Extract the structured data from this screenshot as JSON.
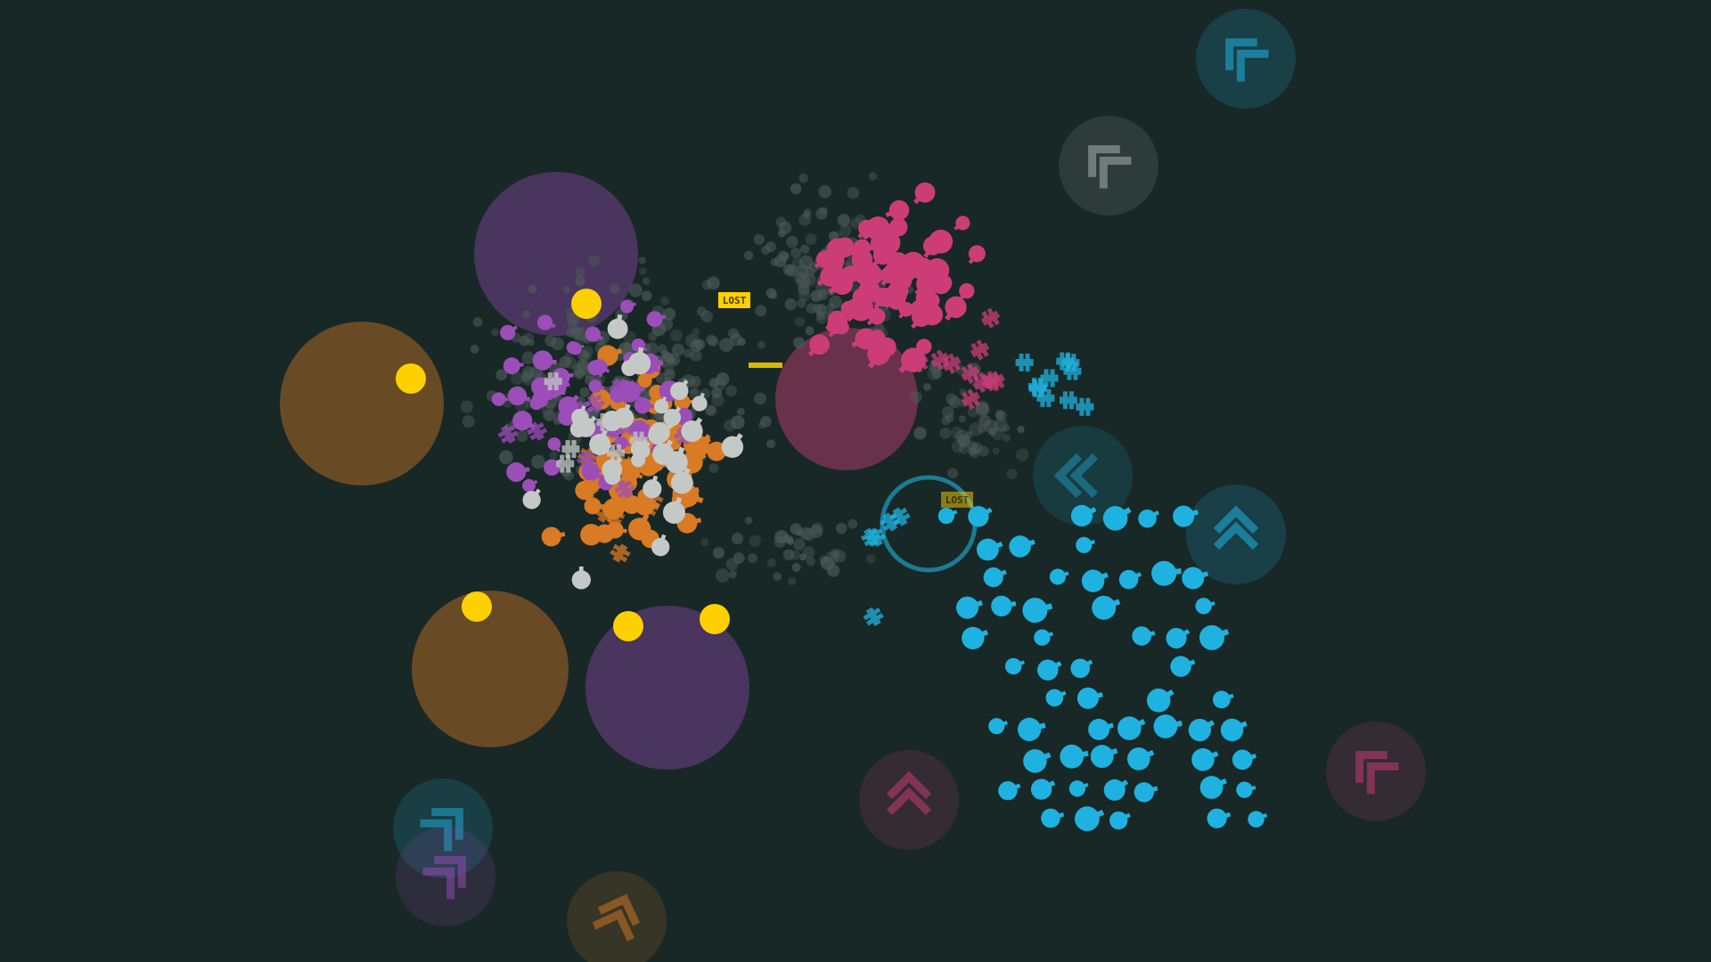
{
  "game": {
    "lost_labels": [
      "LOST",
      "LOST"
    ]
  },
  "colors": {
    "background": "#182826",
    "cyan": "#1fb2e0",
    "pink": "#cc3d78",
    "orange": "#d97a24",
    "purple": "#9b4db8",
    "white": "#c4c9c7",
    "yellow": "#ffd000",
    "debris": "#4d5b58"
  },
  "factions": [
    {
      "name": "cyan"
    },
    {
      "name": "pink"
    },
    {
      "name": "orange"
    },
    {
      "name": "purple"
    },
    {
      "name": "white"
    }
  ],
  "spawn_icons": [
    "chevron-icon",
    "chevron-icon",
    "chevron-icon",
    "chevron-icon",
    "chevron-icon",
    "chevron-icon",
    "chevron-icon",
    "chevron-icon",
    "chevron-icon"
  ]
}
